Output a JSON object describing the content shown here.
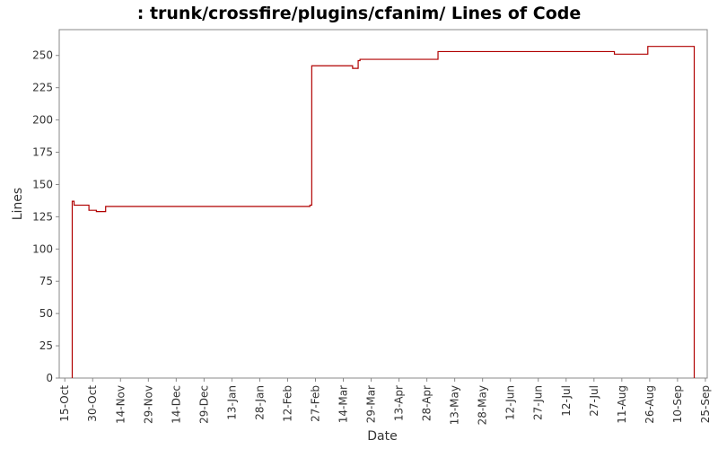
{
  "chart_data": {
    "type": "step",
    "title": ": trunk/crossfire/plugins/cfanim/ Lines of Code",
    "x_label": "Date",
    "y_label": "Lines",
    "x": [
      "19-Oct",
      "20-Oct",
      "28-Oct",
      "1-Nov",
      "6-Nov",
      "24-Feb",
      "25-Feb",
      "19-Mar",
      "22-Mar",
      "23-Mar",
      "4-May",
      "7-Aug",
      "25-Aug",
      "19-Sep"
    ],
    "series": [
      {
        "name": "Lines",
        "color": "#b00000",
        "values": [
          137,
          134,
          130,
          129,
          133,
          134,
          242,
          240,
          246,
          247,
          253,
          251,
          257,
          0
        ]
      }
    ],
    "xlim": [
      "12-Oct",
      "26-Sep"
    ],
    "xticks": [
      "15-Oct",
      "30-Oct",
      "14-Nov",
      "29-Nov",
      "14-Dec",
      "29-Dec",
      "13-Jan",
      "28-Jan",
      "12-Feb",
      "27-Feb",
      "14-Mar",
      "29-Mar",
      "13-Apr",
      "28-Apr",
      "13-May",
      "28-May",
      "12-Jun",
      "27-Jun",
      "12-Jul",
      "27-Jul",
      "11-Aug",
      "26-Aug",
      "10-Sep",
      "25-Sep"
    ],
    "ylim": [
      0,
      270
    ],
    "yticks": [
      0,
      25,
      50,
      75,
      100,
      125,
      150,
      175,
      200,
      225,
      250
    ]
  }
}
